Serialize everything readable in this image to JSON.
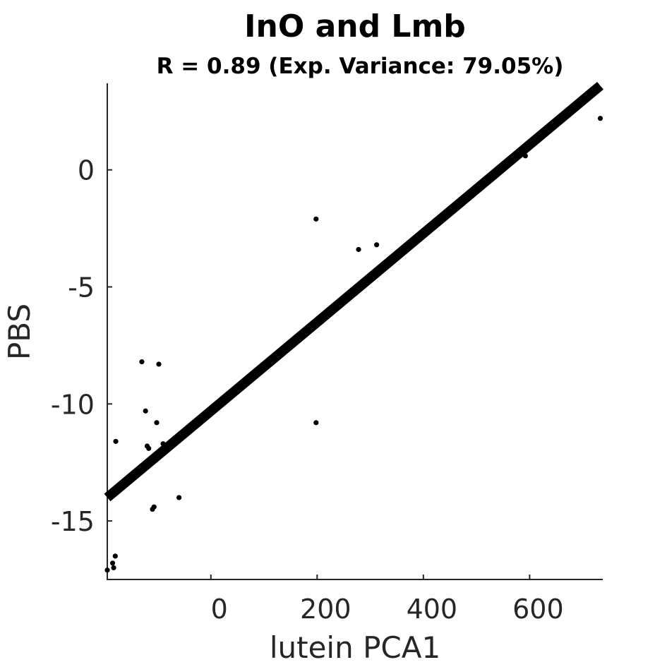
{
  "chart_data": {
    "type": "scatter",
    "title": "InO and Lmb",
    "subtitle": "R = 0.89 (Exp. Variance: 79.05%)",
    "xlabel": "lutein PCA1",
    "ylabel": "PBS",
    "xlim": [
      -195,
      735
    ],
    "ylim": [
      -17.5,
      3.7
    ],
    "xticks": [
      0,
      200,
      400,
      600
    ],
    "yticks": [
      0,
      -5,
      -10,
      -15
    ],
    "grid": false,
    "legend": "none",
    "colors": {
      "points": "#000000",
      "fit_line": "#000000",
      "axes": "#262626"
    },
    "points": {
      "x": [
        -195,
        -185,
        -183,
        -180,
        -179,
        -130,
        -123,
        -120,
        -117,
        -110,
        -107,
        -102,
        -98,
        -90,
        -80,
        -60,
        198,
        198,
        278,
        312,
        592,
        733
      ],
      "y": [
        -17.1,
        -16.8,
        -17.0,
        -16.5,
        -11.6,
        -8.2,
        -10.3,
        -11.8,
        -11.9,
        -14.5,
        -14.4,
        -10.8,
        -8.3,
        -11.7,
        -11.8,
        -14.0,
        -2.1,
        -10.8,
        -3.4,
        -3.2,
        0.6,
        2.2
      ]
    },
    "fit_line": {
      "x": [
        -195,
        733
      ],
      "y": [
        -14.0,
        3.6
      ]
    }
  }
}
